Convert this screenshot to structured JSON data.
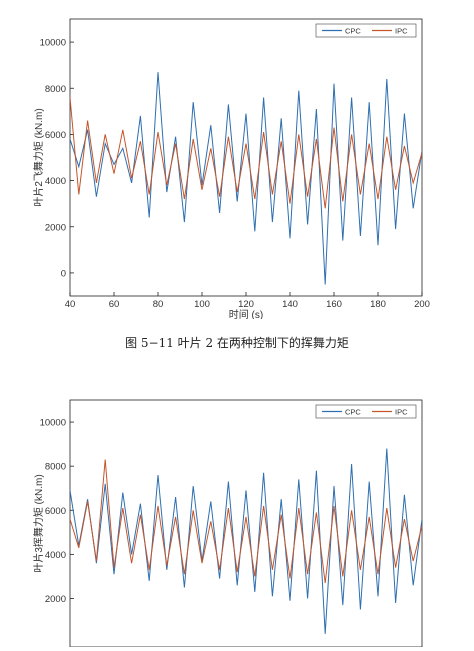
{
  "caption": "图 5−11 叶片 2 在两种控制下的挥舞力矩",
  "colors": {
    "cpc": "#2e6fb0",
    "ipc": "#c4552b",
    "axis": "#222222"
  },
  "chart_data": [
    {
      "type": "line",
      "ylabel": "叶片2飞舞力矩 (kN.m)",
      "xlabel": "时间 (s)",
      "xlim": [
        40,
        200
      ],
      "ylim": [
        -1000,
        11000
      ],
      "xticks": [
        40,
        60,
        80,
        100,
        120,
        140,
        160,
        180,
        200
      ],
      "yticks": [
        0,
        2000,
        4000,
        6000,
        8000,
        10000
      ],
      "legend_position": "top-right",
      "series": [
        {
          "name": "CPC",
          "x": [
            40,
            44,
            48,
            52,
            56,
            60,
            64,
            68,
            72,
            76,
            80,
            84,
            88,
            92,
            96,
            100,
            104,
            108,
            112,
            116,
            120,
            124,
            128,
            132,
            136,
            140,
            144,
            148,
            152,
            156,
            160,
            164,
            168,
            172,
            176,
            180,
            184,
            188,
            192,
            196,
            200
          ],
          "values": [
            5800,
            4600,
            6200,
            3300,
            5600,
            4700,
            5400,
            3900,
            6800,
            2400,
            8700,
            3500,
            5900,
            2200,
            7400,
            3800,
            6400,
            2600,
            7300,
            3100,
            6900,
            1800,
            7600,
            2200,
            6700,
            1500,
            7900,
            2100,
            7100,
            -500,
            8200,
            1400,
            7600,
            1600,
            7400,
            1200,
            8400,
            1900,
            6900,
            2800,
            5300
          ]
        },
        {
          "name": "IPC",
          "x": [
            40,
            44,
            48,
            52,
            56,
            60,
            64,
            68,
            72,
            76,
            80,
            84,
            88,
            92,
            96,
            100,
            104,
            108,
            112,
            116,
            120,
            124,
            128,
            132,
            136,
            140,
            144,
            148,
            152,
            156,
            160,
            164,
            168,
            172,
            176,
            180,
            184,
            188,
            192,
            196,
            200
          ],
          "values": [
            7600,
            3400,
            6600,
            3900,
            6000,
            4300,
            6200,
            4100,
            5700,
            3400,
            6100,
            3800,
            5600,
            3200,
            5800,
            3600,
            5400,
            3300,
            5900,
            3500,
            5600,
            3200,
            6100,
            3400,
            5700,
            3000,
            6000,
            3300,
            5800,
            2800,
            6300,
            3100,
            6000,
            3400,
            5600,
            3200,
            5900,
            3600,
            5500,
            3900,
            5200
          ]
        }
      ]
    },
    {
      "type": "line",
      "ylabel": "叶片3挥舞力矩 (kN.m)",
      "xlabel": "",
      "xlim": [
        40,
        200
      ],
      "ylim": [
        -200,
        11000
      ],
      "xticks": [],
      "yticks": [
        2000,
        4000,
        6000,
        8000,
        10000
      ],
      "legend_position": "top-right",
      "series": [
        {
          "name": "CPC",
          "x": [
            40,
            44,
            48,
            52,
            56,
            60,
            64,
            68,
            72,
            76,
            80,
            84,
            88,
            92,
            96,
            100,
            104,
            108,
            112,
            116,
            120,
            124,
            128,
            132,
            136,
            140,
            144,
            148,
            152,
            156,
            160,
            164,
            168,
            172,
            176,
            180,
            184,
            188,
            192,
            196,
            200
          ],
          "values": [
            6900,
            4400,
            6500,
            3600,
            7200,
            3100,
            6800,
            4000,
            6300,
            2800,
            7600,
            3300,
            6600,
            2500,
            7100,
            3700,
            6400,
            2900,
            7300,
            2600,
            6900,
            2300,
            7700,
            2100,
            6500,
            1900,
            7400,
            2000,
            7800,
            400,
            7100,
            1700,
            8100,
            1500,
            7300,
            2100,
            8800,
            1800,
            6700,
            2600,
            5600
          ]
        },
        {
          "name": "IPC",
          "x": [
            40,
            44,
            48,
            52,
            56,
            60,
            64,
            68,
            72,
            76,
            80,
            84,
            88,
            92,
            96,
            100,
            104,
            108,
            112,
            116,
            120,
            124,
            128,
            132,
            136,
            140,
            144,
            148,
            152,
            156,
            160,
            164,
            168,
            172,
            176,
            180,
            184,
            188,
            192,
            196,
            200
          ],
          "values": [
            5600,
            4300,
            6400,
            3700,
            8300,
            3400,
            6100,
            3600,
            5800,
            3300,
            6200,
            3500,
            5700,
            3100,
            6000,
            3600,
            5500,
            3300,
            6100,
            3200,
            5700,
            3000,
            6200,
            3300,
            5800,
            2900,
            6100,
            3100,
            5900,
            2700,
            6200,
            3000,
            6000,
            3300,
            5700,
            3100,
            6100,
            3400,
            5600,
            3700,
            5300
          ]
        }
      ]
    }
  ]
}
